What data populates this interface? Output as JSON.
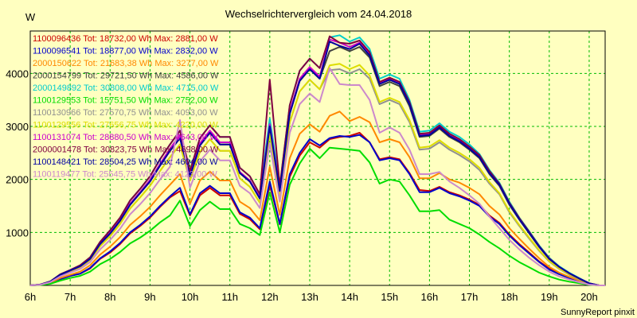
{
  "chart_data": {
    "type": "line",
    "title": "Wechselrichtervergleich vom 24.04.2018",
    "ylabel": "W",
    "footer": "SunnyReport pinxit",
    "x_ticks": [
      "6h",
      "7h",
      "8h",
      "9h",
      "10h",
      "11h",
      "12h",
      "13h",
      "14h",
      "15h",
      "16h",
      "17h",
      "18h",
      "19h",
      "20h"
    ],
    "y_ticks": [
      "1000",
      "2000",
      "3000",
      "4000"
    ],
    "xlim": [
      6,
      20.4
    ],
    "ylim": [
      0,
      4800
    ],
    "grid": true,
    "x": [
      6.0,
      6.25,
      6.5,
      6.75,
      7.0,
      7.25,
      7.5,
      7.75,
      8.0,
      8.25,
      8.5,
      8.75,
      9.0,
      9.25,
      9.5,
      9.75,
      10.0,
      10.25,
      10.5,
      10.75,
      11.0,
      11.25,
      11.5,
      11.75,
      12.0,
      12.25,
      12.5,
      12.75,
      13.0,
      13.25,
      13.5,
      13.75,
      14.0,
      14.25,
      14.5,
      14.75,
      15.0,
      15.25,
      15.5,
      15.75,
      16.0,
      16.25,
      16.5,
      16.75,
      17.0,
      17.25,
      17.5,
      17.75,
      18.0,
      18.25,
      18.5,
      18.75,
      19.0,
      19.25,
      19.5,
      19.75,
      20.0,
      20.25,
      20.4
    ],
    "series": [
      {
        "label": "1100096436 Tot: 18732,00 Wh Max: 2881,00 W",
        "color": "#cc0000",
        "values": [
          0,
          10,
          40,
          120,
          180,
          220,
          320,
          500,
          620,
          780,
          980,
          1120,
          1280,
          1480,
          1660,
          1780,
          1320,
          1700,
          1840,
          1700,
          1700,
          1350,
          1250,
          1060,
          1900,
          1150,
          2050,
          2450,
          2700,
          2600,
          2760,
          2800,
          2820,
          2880,
          2700,
          2380,
          2420,
          2380,
          2120,
          1800,
          1780,
          1860,
          1760,
          1700,
          1620,
          1520,
          1320,
          1180,
          960,
          780,
          620,
          450,
          320,
          220,
          150,
          80,
          20,
          0,
          0
        ]
      },
      {
        "label": "1100096541 Tot: 18877,00 Wh Max: 2832,00 W",
        "color": "#0000cc",
        "values": [
          0,
          10,
          40,
          120,
          180,
          220,
          330,
          510,
          640,
          800,
          1000,
          1140,
          1300,
          1500,
          1680,
          1840,
          1340,
          1740,
          1880,
          1740,
          1740,
          1380,
          1280,
          1080,
          1960,
          1160,
          2100,
          2500,
          2760,
          2640,
          2780,
          2820,
          2800,
          2840,
          2700,
          2360,
          2400,
          2360,
          2100,
          1760,
          1760,
          1840,
          1740,
          1680,
          1600,
          1500,
          1300,
          1160,
          940,
          760,
          600,
          440,
          300,
          210,
          140,
          80,
          20,
          0,
          0
        ]
      },
      {
        "label": "2000150622 Tot: 21683,38 Wh Max: 3277,00 W",
        "color": "#ff8800",
        "values": [
          0,
          10,
          50,
          140,
          200,
          260,
          380,
          580,
          730,
          910,
          1140,
          1300,
          1480,
          1700,
          1900,
          2100,
          1540,
          1980,
          2150,
          1980,
          1980,
          1580,
          1460,
          1230,
          2240,
          1330,
          2400,
          2860,
          3040,
          2900,
          3200,
          3280,
          3100,
          3180,
          3080,
          2700,
          2760,
          2700,
          2420,
          2020,
          2020,
          2120,
          2000,
          1940,
          1840,
          1720,
          1500,
          1340,
          1080,
          880,
          690,
          510,
          350,
          240,
          160,
          90,
          25,
          0,
          0
        ]
      },
      {
        "label": "2000154799 Tot: 29721,50 Wh Max: 4586,00 W",
        "color": "#404040",
        "values": [
          0,
          15,
          70,
          200,
          280,
          360,
          500,
          780,
          980,
          1220,
          1520,
          1740,
          1960,
          2260,
          2540,
          2780,
          2060,
          2640,
          2880,
          2660,
          2660,
          2120,
          1960,
          1640,
          3000,
          1780,
          3240,
          3860,
          4080,
          3900,
          4420,
          4500,
          4420,
          4500,
          4300,
          3760,
          3840,
          3760,
          3380,
          2800,
          2820,
          2960,
          2800,
          2700,
          2560,
          2400,
          2100,
          1880,
          1520,
          1240,
          980,
          720,
          500,
          350,
          230,
          130,
          40,
          0,
          0
        ]
      },
      {
        "label": "2000149892 Tot: 30808,00 Wh Max: 4715,00 W",
        "color": "#00cccc",
        "values": [
          0,
          15,
          75,
          210,
          290,
          380,
          530,
          820,
          1040,
          1280,
          1600,
          1820,
          2060,
          2380,
          2660,
          2920,
          2160,
          2780,
          3020,
          2800,
          2800,
          2220,
          2060,
          1720,
          3150,
          1870,
          3400,
          4050,
          4280,
          4100,
          4680,
          4720,
          4600,
          4680,
          4460,
          3900,
          3980,
          3900,
          3500,
          2900,
          2920,
          3060,
          2900,
          2800,
          2660,
          2480,
          2180,
          1940,
          1580,
          1280,
          1020,
          750,
          520,
          360,
          240,
          140,
          40,
          0,
          0
        ]
      },
      {
        "label": "1100129553 Tot: 15751,50 Wh Max: 2752,00 W",
        "color": "#00dd00",
        "values": [
          0,
          8,
          30,
          90,
          140,
          180,
          260,
          400,
          500,
          630,
          790,
          900,
          1030,
          1190,
          1320,
          1600,
          1120,
          1420,
          1580,
          1440,
          1440,
          1160,
          1080,
          950,
          1760,
          1000,
          1900,
          2300,
          2580,
          2400,
          2600,
          2580,
          2560,
          2540,
          2320,
          1920,
          2000,
          1960,
          1700,
          1400,
          1400,
          1420,
          1240,
          1160,
          1080,
          960,
          820,
          700,
          560,
          440,
          340,
          240,
          170,
          110,
          70,
          40,
          10,
          0,
          0
        ]
      },
      {
        "label": "1100130966 Tot: 27570,75 Wh Max: 4093,00 W",
        "color": "#909090",
        "values": [
          0,
          15,
          65,
          190,
          270,
          340,
          480,
          740,
          930,
          1160,
          1450,
          1660,
          1880,
          2160,
          2420,
          2660,
          1980,
          2520,
          2760,
          2540,
          2540,
          2020,
          1860,
          1560,
          2860,
          1690,
          3080,
          3660,
          3880,
          3700,
          4060,
          4080,
          4000,
          4080,
          3900,
          3420,
          3500,
          3420,
          3080,
          2560,
          2580,
          2700,
          2560,
          2460,
          2340,
          2180,
          1920,
          1720,
          1380,
          1120,
          880,
          650,
          450,
          310,
          200,
          110,
          30,
          0,
          0
        ]
      },
      {
        "label": "1100129556 Tot: 27656,75 Wh Max: 4220,00 W",
        "color": "#dddd00",
        "values": [
          0,
          15,
          65,
          190,
          270,
          340,
          480,
          740,
          930,
          1160,
          1450,
          1660,
          1880,
          2160,
          2420,
          2660,
          1980,
          2520,
          2760,
          2540,
          2540,
          2020,
          1860,
          1560,
          2860,
          1690,
          3080,
          3660,
          3880,
          3700,
          4150,
          4180,
          4080,
          4160,
          3960,
          3460,
          3540,
          3460,
          3120,
          2600,
          2620,
          2740,
          2600,
          2500,
          2380,
          2220,
          1950,
          1740,
          1400,
          1140,
          900,
          660,
          460,
          320,
          210,
          120,
          30,
          0,
          0
        ]
      },
      {
        "label": "1100131074 Tot: 28880,50 Wh Max: 4643,00 W",
        "color": "#cc00cc",
        "values": [
          0,
          15,
          70,
          200,
          280,
          360,
          510,
          790,
          990,
          1230,
          1540,
          1760,
          1990,
          2290,
          2580,
          2840,
          2100,
          2680,
          2920,
          2700,
          2700,
          2140,
          1980,
          1660,
          3040,
          1800,
          3280,
          3900,
          4120,
          3940,
          4640,
          4580,
          4500,
          4580,
          4380,
          3820,
          3900,
          3820,
          3440,
          2840,
          2860,
          3000,
          2840,
          2740,
          2600,
          2440,
          2140,
          1900,
          1540,
          1260,
          1000,
          730,
          510,
          350,
          230,
          130,
          40,
          0,
          0
        ]
      },
      {
        "label": "2000001478 Tot: 30823,75 Wh Max: 4698,00 W",
        "color": "#800040",
        "values": [
          0,
          15,
          75,
          210,
          290,
          380,
          530,
          820,
          1040,
          1280,
          1600,
          1820,
          2060,
          2380,
          2660,
          2920,
          2160,
          2780,
          3020,
          2800,
          2800,
          2220,
          2060,
          1720,
          3880,
          1870,
          3400,
          4050,
          4280,
          4100,
          4700,
          4580,
          4560,
          4620,
          4400,
          3840,
          3920,
          3840,
          3460,
          2860,
          2880,
          3020,
          2860,
          2760,
          2620,
          2460,
          2160,
          1920,
          1560,
          1270,
          1010,
          740,
          510,
          350,
          230,
          130,
          40,
          0,
          0
        ]
      },
      {
        "label": "1100148421 Tot: 28504,25 Wh Max: 4604,00 W",
        "color": "#0000a0",
        "values": [
          0,
          15,
          70,
          200,
          280,
          360,
          500,
          780,
          980,
          1220,
          1520,
          1740,
          1960,
          2260,
          2540,
          2780,
          2060,
          2640,
          2880,
          2660,
          2660,
          2120,
          1960,
          1640,
          3000,
          1780,
          3240,
          3860,
          4080,
          3900,
          4600,
          4520,
          4460,
          4560,
          4340,
          3800,
          3880,
          3800,
          3420,
          2820,
          2840,
          2980,
          2820,
          2720,
          2580,
          2420,
          2120,
          1900,
          1540,
          1250,
          990,
          730,
          500,
          350,
          230,
          130,
          40,
          0,
          0
        ]
      },
      {
        "label": "1100119477 Tot: 25545,75 Wh Max: 4123,00 W",
        "color": "#cc88cc",
        "values": [
          0,
          12,
          60,
          170,
          240,
          310,
          440,
          680,
          860,
          1070,
          1340,
          1530,
          1740,
          2000,
          2240,
          3120,
          1840,
          2340,
          2560,
          2360,
          2360,
          1880,
          1740,
          1460,
          2680,
          1580,
          2880,
          3420,
          3620,
          3460,
          4100,
          3800,
          3780,
          3780,
          3500,
          2880,
          2980,
          2880,
          2560,
          2100,
          2100,
          2140,
          1960,
          1840,
          1700,
          1540,
          1300,
          1080,
          860,
          680,
          520,
          380,
          260,
          170,
          110,
          60,
          15,
          0,
          0
        ]
      }
    ]
  }
}
